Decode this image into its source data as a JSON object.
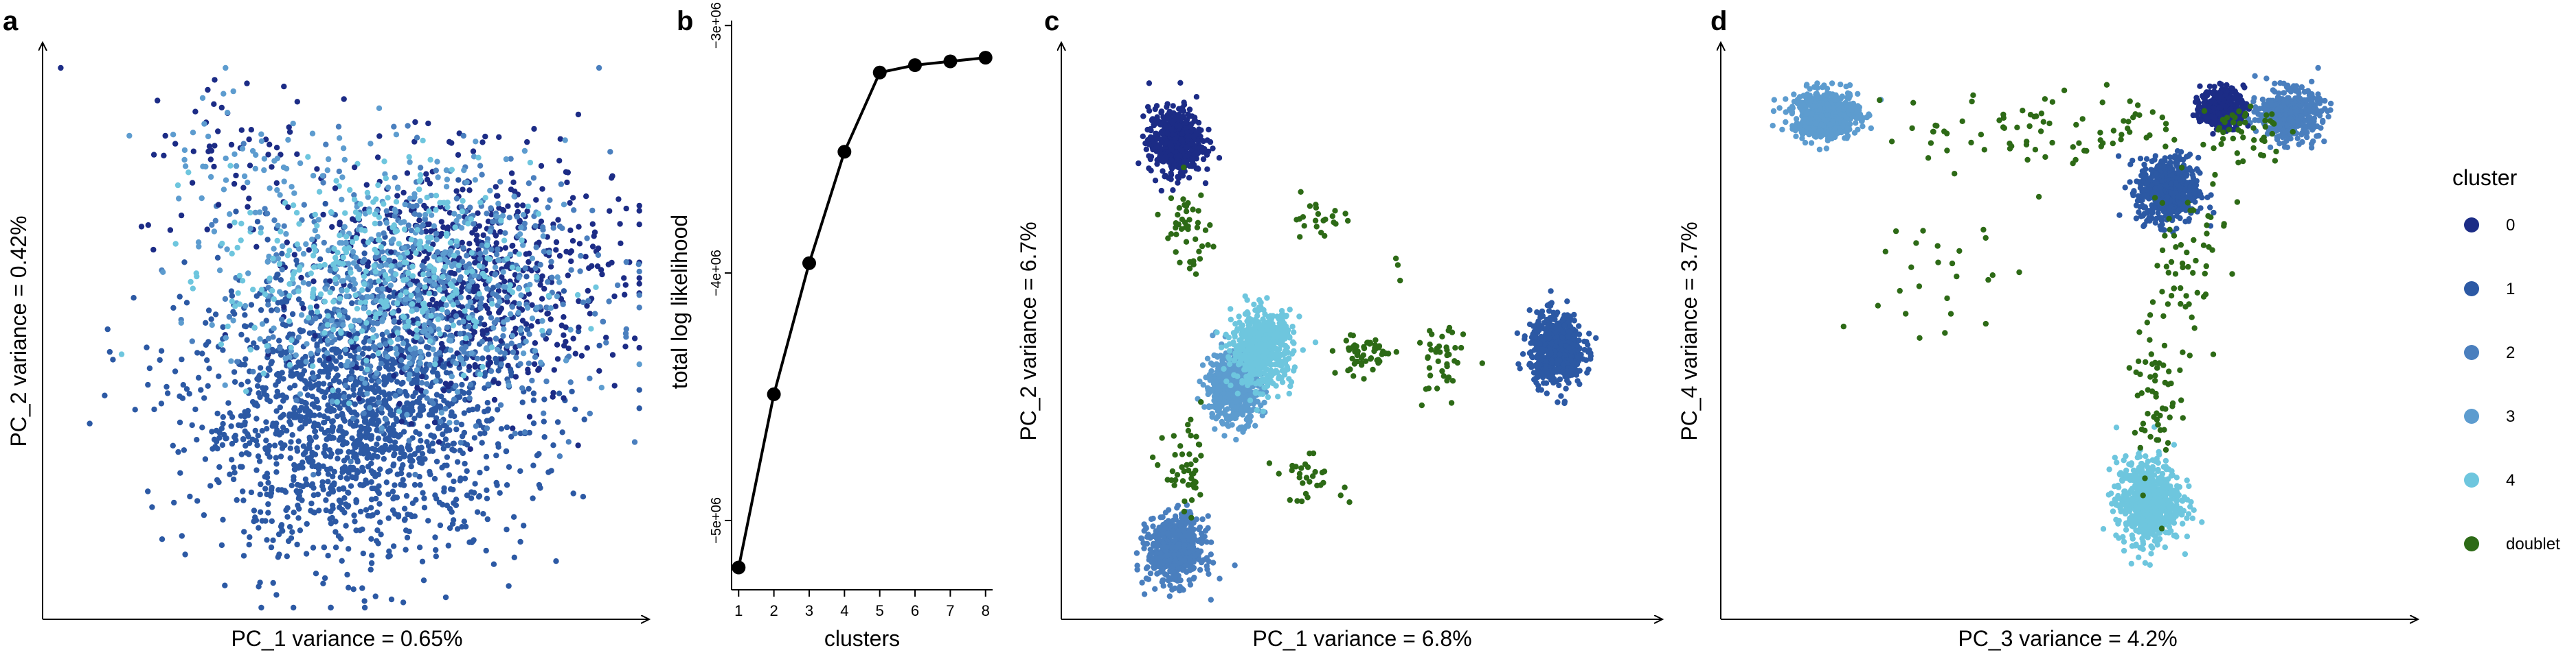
{
  "colors": {
    "0": "#1c2c86",
    "1": "#2c59a4",
    "2": "#4a7fbe",
    "3": "#5d9ccf",
    "4": "#6ec6de",
    "doublet": "#2d6a16"
  },
  "chart_data": [
    {
      "panel": "a",
      "type": "scatter",
      "xlabel": "PC_1 variance = 0.65%",
      "ylabel": "PC_2 variance = 0.42%",
      "xlim": [
        0,
        100
      ],
      "ylim": [
        0,
        100
      ],
      "clusters": [
        {
          "name": "1",
          "cx": 52,
          "cy": 36,
          "sx": 14,
          "sy": 13,
          "n": 1700
        },
        {
          "name": "0",
          "cx": 70,
          "cy": 61,
          "sx": 13,
          "sy": 11,
          "n": 650
        },
        {
          "name": "2",
          "cx": 64,
          "cy": 58,
          "sx": 15,
          "sy": 12,
          "n": 450
        },
        {
          "name": "3",
          "cx": 60,
          "cy": 60,
          "sx": 14,
          "sy": 11,
          "n": 380
        },
        {
          "name": "4",
          "cx": 55,
          "cy": 62,
          "sx": 13,
          "sy": 10,
          "n": 330
        },
        {
          "name": "0",
          "cx": 32,
          "cy": 83,
          "sx": 9,
          "sy": 8,
          "n": 60
        },
        {
          "name": "3",
          "cx": 34,
          "cy": 84,
          "sx": 9,
          "sy": 8,
          "n": 55
        }
      ]
    },
    {
      "panel": "b",
      "type": "line",
      "xlabel": "clusters",
      "ylabel": "total log likelihood",
      "x": [
        1,
        2,
        3,
        4,
        5,
        6,
        7,
        8
      ],
      "y": [
        -5190000,
        -4490000,
        -3960000,
        -3510000,
        -3190000,
        -3160000,
        -3145000,
        -3130000
      ],
      "xticks": [
        "1",
        "2",
        "3",
        "4",
        "5",
        "6",
        "7",
        "8"
      ],
      "yticks": [
        {
          "value": -3000000,
          "label": "−3e+06"
        },
        {
          "value": -4000000,
          "label": "−4e+06"
        },
        {
          "value": -5000000,
          "label": "−5e+06"
        }
      ],
      "xlim": [
        0.8,
        8.2
      ],
      "ylim": [
        -5280000,
        -2980000
      ]
    },
    {
      "panel": "c",
      "type": "scatter",
      "xlabel": "PC_1 variance = 6.8%",
      "ylabel": "PC_2 variance = 6.7%",
      "xlim": [
        0,
        100
      ],
      "ylim": [
        0,
        100
      ],
      "clusters": [
        {
          "name": "0",
          "cx": 18,
          "cy": 86,
          "sx": 2.3,
          "sy": 3.0,
          "n": 550
        },
        {
          "name": "1",
          "cx": 84,
          "cy": 48,
          "sx": 2.3,
          "sy": 3.2,
          "n": 600
        },
        {
          "name": "2",
          "cx": 18,
          "cy": 11,
          "sx": 2.4,
          "sy": 3.0,
          "n": 550
        },
        {
          "name": "3",
          "cx": 28,
          "cy": 41,
          "sx": 2.4,
          "sy": 3.3,
          "n": 550
        },
        {
          "name": "4",
          "cx": 33,
          "cy": 48,
          "sx": 2.6,
          "sy": 3.4,
          "n": 600
        },
        {
          "name": "doublet",
          "cx": 20,
          "cy": 70,
          "sx": 2.0,
          "sy": 4.0,
          "n": 45
        },
        {
          "name": "doublet",
          "cx": 20,
          "cy": 25,
          "sx": 2.0,
          "sy": 4.0,
          "n": 45
        },
        {
          "name": "doublet",
          "cx": 51,
          "cy": 47,
          "sx": 2.5,
          "sy": 2.0,
          "n": 55
        },
        {
          "name": "doublet",
          "cx": 64,
          "cy": 45,
          "sx": 2.0,
          "sy": 4.0,
          "n": 40
        },
        {
          "name": "doublet",
          "cx": 42,
          "cy": 72,
          "sx": 3.0,
          "sy": 2.0,
          "n": 22
        },
        {
          "name": "doublet",
          "cx": 41,
          "cy": 24,
          "sx": 3.0,
          "sy": 2.0,
          "n": 30
        },
        {
          "name": "doublet",
          "cx": 58,
          "cy": 62,
          "sx": 1.5,
          "sy": 1.5,
          "n": 3
        }
      ]
    },
    {
      "panel": "d",
      "type": "scatter",
      "xlabel": "PC_3 variance = 4.2%",
      "ylabel": "PC_4 variance = 3.7%",
      "xlim": [
        0,
        100
      ],
      "ylim": [
        0,
        100
      ],
      "clusters": [
        {
          "name": "3",
          "cx": 14,
          "cy": 91,
          "sx": 2.5,
          "sy": 2.2,
          "n": 600
        },
        {
          "name": "2",
          "cx": 83,
          "cy": 91,
          "sx": 2.2,
          "sy": 2.2,
          "n": 500
        },
        {
          "name": "0",
          "cx": 73,
          "cy": 92,
          "sx": 1.6,
          "sy": 1.8,
          "n": 400
        },
        {
          "name": "1",
          "cx": 65,
          "cy": 77,
          "sx": 2.2,
          "sy": 3.0,
          "n": 600
        },
        {
          "name": "4",
          "cx": 62,
          "cy": 20,
          "sx": 2.4,
          "sy": 3.8,
          "n": 650
        },
        {
          "name": "doublet",
          "cx": 40,
          "cy": 88,
          "sx": 9,
          "sy": 4,
          "n": 55
        },
        {
          "name": "doublet",
          "cx": 58,
          "cy": 89,
          "sx": 5,
          "sy": 3,
          "n": 30
        },
        {
          "name": "doublet",
          "cx": 76,
          "cy": 88,
          "sx": 3,
          "sy": 3,
          "n": 45
        },
        {
          "name": "doublet",
          "cx": 63,
          "cy": 40,
          "sx": 1.6,
          "sy": 8,
          "n": 60
        },
        {
          "name": "doublet",
          "cx": 67,
          "cy": 58,
          "sx": 2.0,
          "sy": 8,
          "n": 40
        },
        {
          "name": "doublet",
          "cx": 31,
          "cy": 60,
          "sx": 5,
          "sy": 9,
          "n": 25
        },
        {
          "name": "doublet",
          "cx": 70,
          "cy": 70,
          "sx": 3,
          "sy": 6,
          "n": 20
        }
      ]
    }
  ],
  "panel_labels": {
    "a": "a",
    "b": "b",
    "c": "c",
    "d": "d"
  },
  "legend": {
    "title": "cluster",
    "entries": [
      "0",
      "1",
      "2",
      "3",
      "4",
      "doublet"
    ]
  }
}
